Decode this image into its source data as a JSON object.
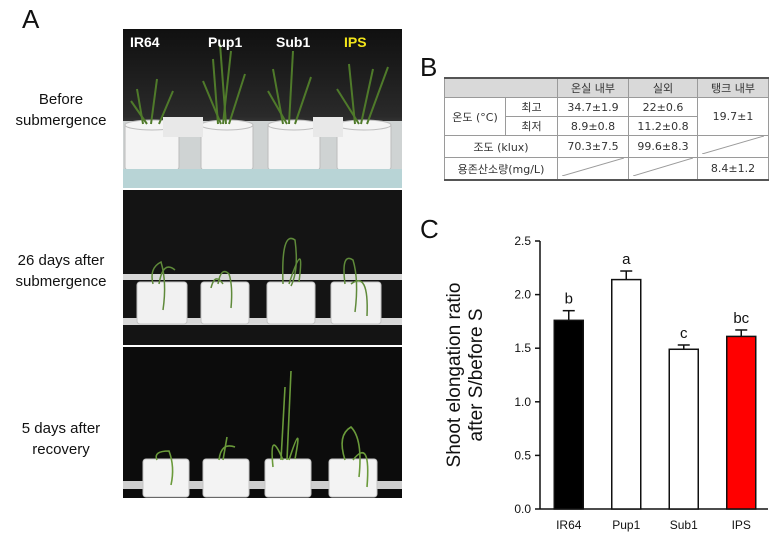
{
  "panels": {
    "a": "A",
    "b": "B",
    "c": "C"
  },
  "panel_a": {
    "genotypes": [
      "IR64",
      "Pup1",
      "Sub1",
      "IPS"
    ],
    "genotype_colors": [
      "#ffffff",
      "#ffffff",
      "#ffffff",
      "#f2e51a"
    ],
    "rows": [
      {
        "line1": "Before",
        "line2": "submergence"
      },
      {
        "line1": "26 days after",
        "line2": "submergence"
      },
      {
        "line1": "5 days after",
        "line2": "recovery"
      }
    ]
  },
  "table_b": {
    "columns": [
      "온실 내부",
      "실외",
      "탱크 내부"
    ],
    "temp_label": "온도 (°C)",
    "max_label": "최고",
    "min_label": "최저",
    "max_values": [
      "34.7±1.9",
      "22±0.6"
    ],
    "min_values": [
      "8.9±0.8",
      "11.2±0.8"
    ],
    "tank_temp": "19.7±1",
    "illuminance_label": "조도 (klux)",
    "illuminance_values": [
      "70.3±7.5",
      "99.6±8.3"
    ],
    "oxygen_label": "용존산소량(mg/L)",
    "oxygen_tank": "8.4±1.2"
  },
  "chart_data": {
    "type": "bar",
    "categories": [
      "IR64",
      "Pup1",
      "Sub1",
      "IPS"
    ],
    "values": [
      1.76,
      2.14,
      1.49,
      1.61
    ],
    "errors": [
      0.09,
      0.08,
      0.04,
      0.06
    ],
    "letters": [
      "b",
      "a",
      "c",
      "bc"
    ],
    "colors": [
      "#000000",
      "#ffffff",
      "#ffffff",
      "#ff0000"
    ],
    "ylabel_line1": "Shoot elongation ratio",
    "ylabel_line2": "after S/before S",
    "ylim": [
      0,
      2.5
    ],
    "yticks": [
      "0.0",
      "0.5",
      "1.0",
      "1.5",
      "2.0",
      "2.5"
    ]
  }
}
